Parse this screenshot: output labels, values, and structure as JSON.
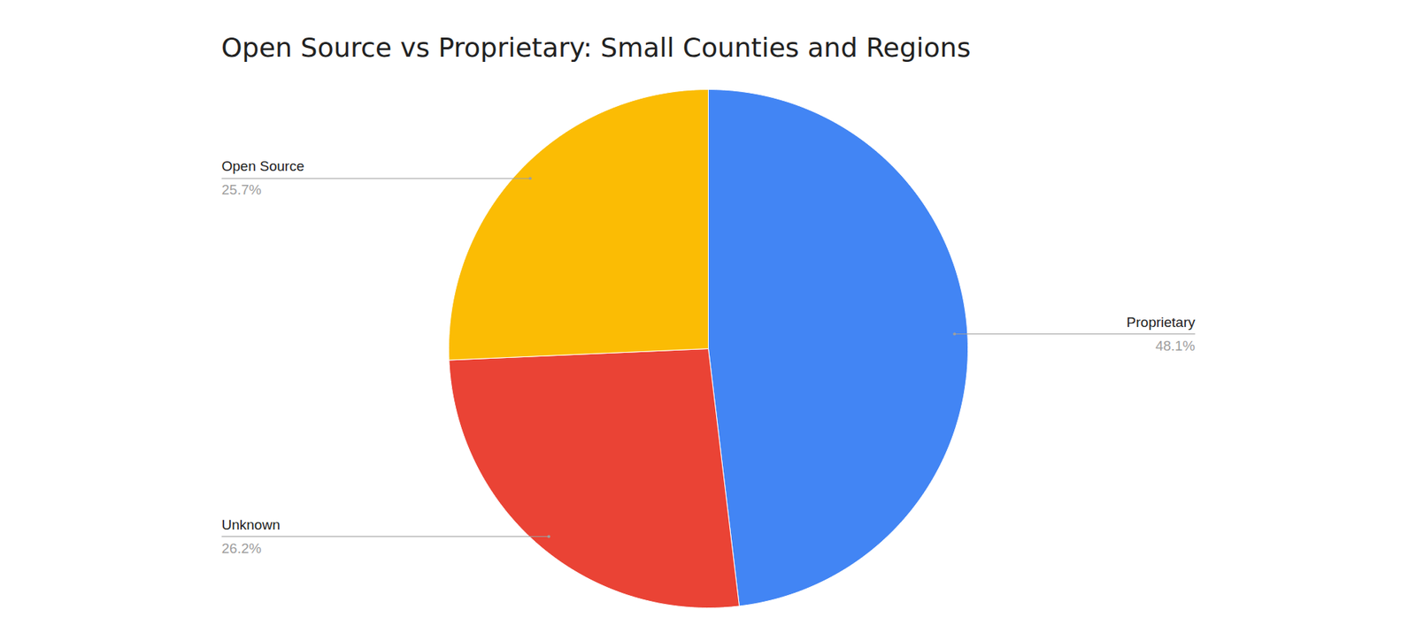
{
  "chart_data": {
    "type": "pie",
    "title": "Open Source vs Proprietary: Small Counties and Regions",
    "categories": [
      "Proprietary",
      "Unknown",
      "Open Source"
    ],
    "values": [
      48.1,
      26.2,
      25.7
    ],
    "value_labels": [
      "48.1%",
      "26.2%",
      "25.7%"
    ],
    "colors": [
      "#4285f4",
      "#ea4335",
      "#fbbc04"
    ],
    "data_labels": true
  }
}
